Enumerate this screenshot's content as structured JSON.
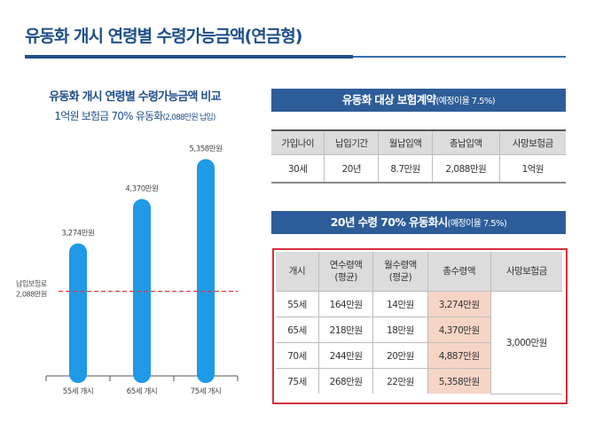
{
  "page": {
    "title": "유동화 개시 연령별 수령가능금액(연금형)"
  },
  "chart": {
    "title": "유동화 개시 연령별 수령가능금액 비교",
    "subtitle_main": "1억원 보험금 70% 유동화",
    "subtitle_note": "(2,088만원 납입)",
    "ref_label_line1": "납입보험료",
    "ref_label_line2": "2,088만원",
    "bar_color": "#1f9ae6",
    "ref_line_color": "#e03a3a"
  },
  "chart_data": {
    "type": "bar",
    "categories": [
      "55세 개시",
      "65세 개시",
      "75세 개시"
    ],
    "values": [
      3274,
      4370,
      5358
    ],
    "value_labels": [
      "3,274만원",
      "4,370만원",
      "5,358만원"
    ],
    "reference_line": 2088,
    "title": "유동화 개시 연령별 수령가능금액 비교",
    "ylim": [
      0,
      6000
    ]
  },
  "table1": {
    "title": "유동화 대상 보험계약",
    "title_note": "(예정이율 7.5%)",
    "headers": [
      "가입나이",
      "납입기간",
      "월납입액",
      "총납입액",
      "사망보험금"
    ],
    "row": [
      "30세",
      "20년",
      "8.7만원",
      "2,088만원",
      "1억원"
    ]
  },
  "table2": {
    "title": "20년 수령 70% 유동화시",
    "title_note": "(예정이율 7.5%)",
    "headers": [
      "개시",
      "연수령액\n(평균)",
      "월수령액\n(평균)",
      "총수령액",
      "사망보험금"
    ],
    "rows": [
      [
        "55세",
        "164만원",
        "14만원",
        "3,274만원"
      ],
      [
        "65세",
        "218만원",
        "18만원",
        "4,370만원"
      ],
      [
        "70세",
        "244만원",
        "20만원",
        "4,887만원"
      ],
      [
        "75세",
        "268만원",
        "22만원",
        "5,358만원"
      ]
    ],
    "death_benefit": "3,000만원"
  }
}
